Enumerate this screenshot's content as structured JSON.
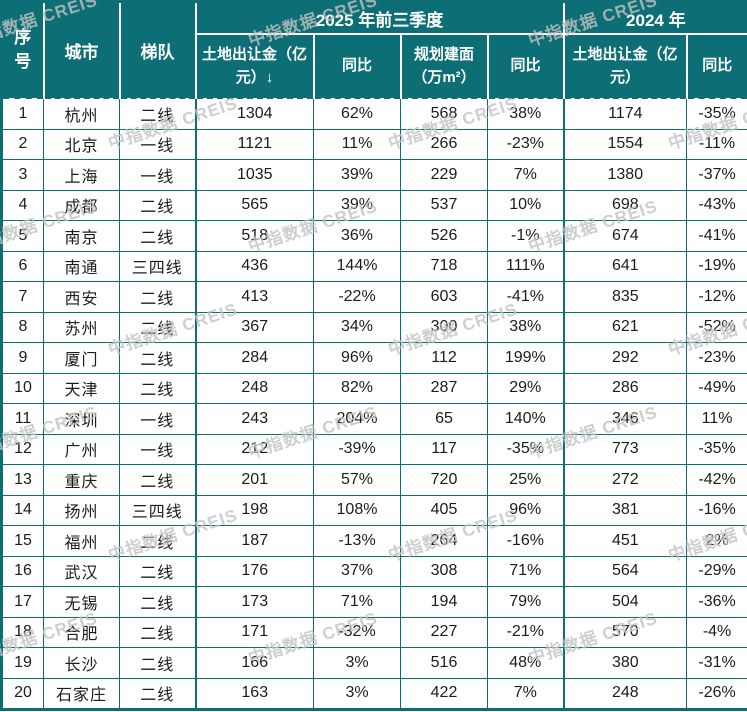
{
  "watermark": {
    "text": "中指数据 CREIS"
  },
  "colors": {
    "teal": "#0d6f75",
    "headerText": "#ffffff",
    "bodyText": "#1c1c1c",
    "watermarkGray": "#c2c2c2"
  },
  "chart_data": {
    "type": "table",
    "header_labels": {
      "rank": "序\n号",
      "city": "城市",
      "tier": "梯队"
    },
    "header_groups": [
      {
        "label": "2025 年前三季度",
        "colspan": 4
      },
      {
        "label": "2024 年",
        "colspan": 2
      }
    ],
    "sub_headers": [
      "土地出让金（亿元）↓",
      "同比",
      "规划建面（万m²）",
      "同比",
      "土地出让金（亿元）",
      "同比"
    ],
    "rows": [
      [
        "1",
        "杭州",
        "二线",
        "1304",
        "62%",
        "568",
        "38%",
        "1174",
        "-35%"
      ],
      [
        "2",
        "北京",
        "一线",
        "1121",
        "11%",
        "266",
        "-23%",
        "1554",
        "-11%"
      ],
      [
        "3",
        "上海",
        "一线",
        "1035",
        "39%",
        "229",
        "7%",
        "1380",
        "-37%"
      ],
      [
        "4",
        "成都",
        "二线",
        "565",
        "39%",
        "537",
        "10%",
        "698",
        "-43%"
      ],
      [
        "5",
        "南京",
        "二线",
        "518",
        "36%",
        "526",
        "-1%",
        "674",
        "-41%"
      ],
      [
        "6",
        "南通",
        "三四线",
        "436",
        "144%",
        "718",
        "111%",
        "641",
        "-19%"
      ],
      [
        "7",
        "西安",
        "二线",
        "413",
        "-22%",
        "603",
        "-41%",
        "835",
        "-12%"
      ],
      [
        "8",
        "苏州",
        "二线",
        "367",
        "34%",
        "300",
        "38%",
        "621",
        "-52%"
      ],
      [
        "9",
        "厦门",
        "二线",
        "284",
        "96%",
        "112",
        "199%",
        "292",
        "-23%"
      ],
      [
        "10",
        "天津",
        "二线",
        "248",
        "82%",
        "287",
        "29%",
        "286",
        "-49%"
      ],
      [
        "11",
        "深圳",
        "一线",
        "243",
        "204%",
        "65",
        "140%",
        "346",
        "11%"
      ],
      [
        "12",
        "广州",
        "一线",
        "212",
        "-39%",
        "117",
        "-35%",
        "773",
        "-35%"
      ],
      [
        "13",
        "重庆",
        "二线",
        "201",
        "57%",
        "720",
        "25%",
        "272",
        "-42%"
      ],
      [
        "14",
        "扬州",
        "三四线",
        "198",
        "108%",
        "405",
        "96%",
        "381",
        "-16%"
      ],
      [
        "15",
        "福州",
        "二线",
        "187",
        "-13%",
        "264",
        "-16%",
        "451",
        "2%"
      ],
      [
        "16",
        "武汉",
        "二线",
        "176",
        "37%",
        "308",
        "71%",
        "564",
        "-29%"
      ],
      [
        "17",
        "无锡",
        "二线",
        "173",
        "71%",
        "194",
        "79%",
        "504",
        "-36%"
      ],
      [
        "18",
        "合肥",
        "二线",
        "171",
        "-32%",
        "227",
        "-21%",
        "570",
        "-4%"
      ],
      [
        "19",
        "长沙",
        "二线",
        "166",
        "3%",
        "516",
        "48%",
        "380",
        "-31%"
      ],
      [
        "20",
        "石家庄",
        "二线",
        "163",
        "3%",
        "422",
        "7%",
        "248",
        "-26%"
      ]
    ]
  }
}
